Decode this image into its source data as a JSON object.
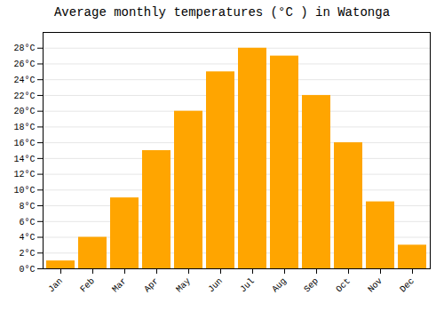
{
  "chart_data": {
    "type": "bar",
    "title": "Average monthly temperatures (°C ) in Watonga",
    "categories": [
      "Jan",
      "Feb",
      "Mar",
      "Apr",
      "May",
      "Jun",
      "Jul",
      "Aug",
      "Sep",
      "Oct",
      "Nov",
      "Dec"
    ],
    "values": [
      1,
      4,
      9,
      15,
      20,
      25,
      28,
      27,
      22,
      16,
      8.5,
      3
    ],
    "color": "#FFA500",
    "ylim": [
      0,
      30
    ],
    "yticks": [
      {
        "value": 0,
        "label": "0°C"
      },
      {
        "value": 2,
        "label": "2°C"
      },
      {
        "value": 4,
        "label": "4°C"
      },
      {
        "value": 6,
        "label": "6°C"
      },
      {
        "value": 8,
        "label": "8°C"
      },
      {
        "value": 10,
        "label": "10°C"
      },
      {
        "value": 12,
        "label": "12°C"
      },
      {
        "value": 14,
        "label": "14°C"
      },
      {
        "value": 16,
        "label": "16°C"
      },
      {
        "value": 18,
        "label": "18°C"
      },
      {
        "value": 20,
        "label": "20°C"
      },
      {
        "value": 22,
        "label": "22°C"
      },
      {
        "value": 24,
        "label": "24°C"
      },
      {
        "value": 26,
        "label": "26°C"
      },
      {
        "value": 28,
        "label": "28°C"
      }
    ],
    "grid": true
  }
}
